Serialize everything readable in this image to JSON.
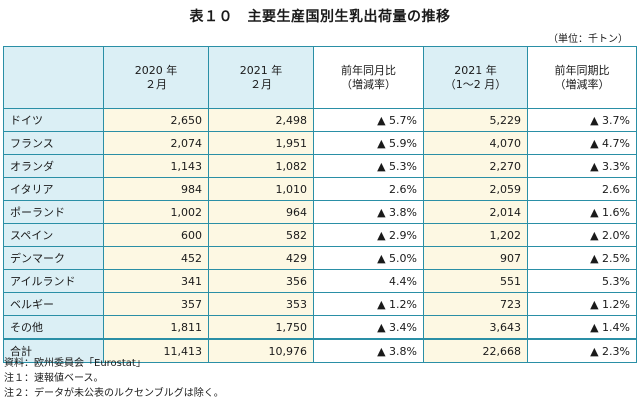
{
  "title": "表１０　主要生産国別生乳出荷量の推移",
  "unit": "（単位：千トン）",
  "columns": {
    "c2020": "2020 年\n２月",
    "c2021": "2021 年\n２月",
    "cyoy": "前年同月比\n（増減率）",
    "c2021cum": "2021 年\n（1～2 月）",
    "ccum": "前年同期比\n（増減率）"
  },
  "rows": [
    {
      "country": "ドイツ",
      "v2020": "2,650",
      "v2021": "2,498",
      "yoy": "▲ 5.7%",
      "cum": "5,229",
      "cumPct": "▲ 3.7%"
    },
    {
      "country": "フランス",
      "v2020": "2,074",
      "v2021": "1,951",
      "yoy": "▲ 5.9%",
      "cum": "4,070",
      "cumPct": "▲ 4.7%"
    },
    {
      "country": "オランダ",
      "v2020": "1,143",
      "v2021": "1,082",
      "yoy": "▲ 5.3%",
      "cum": "2,270",
      "cumPct": "▲ 3.3%"
    },
    {
      "country": "イタリア",
      "v2020": "984",
      "v2021": "1,010",
      "yoy": "2.6%",
      "cum": "2,059",
      "cumPct": "2.6%"
    },
    {
      "country": "ポーランド",
      "v2020": "1,002",
      "v2021": "964",
      "yoy": "▲ 3.8%",
      "cum": "2,014",
      "cumPct": "▲ 1.6%"
    },
    {
      "country": "スペイン",
      "v2020": "600",
      "v2021": "582",
      "yoy": "▲ 2.9%",
      "cum": "1,202",
      "cumPct": "▲ 2.0%"
    },
    {
      "country": "デンマーク",
      "v2020": "452",
      "v2021": "429",
      "yoy": "▲ 5.0%",
      "cum": "907",
      "cumPct": "▲ 2.5%"
    },
    {
      "country": "アイルランド",
      "v2020": "341",
      "v2021": "356",
      "yoy": "4.4%",
      "cum": "551",
      "cumPct": "5.3%"
    },
    {
      "country": "ベルギー",
      "v2020": "357",
      "v2021": "353",
      "yoy": "▲ 1.2%",
      "cum": "723",
      "cumPct": "▲ 1.2%"
    },
    {
      "country": "その他",
      "v2020": "1,811",
      "v2021": "1,750",
      "yoy": "▲ 3.4%",
      "cum": "3,643",
      "cumPct": "▲ 1.4%"
    },
    {
      "country": "合計",
      "v2020": "11,413",
      "v2021": "10,976",
      "yoy": "▲ 3.8%",
      "cum": "22,668",
      "cumPct": "▲ 2.3%"
    }
  ],
  "notes": [
    "資料：欧州委員会「Eurostat」",
    "注１：速報値ベース。",
    "注２：データが未公表のルクセンブルグは除く。"
  ]
}
